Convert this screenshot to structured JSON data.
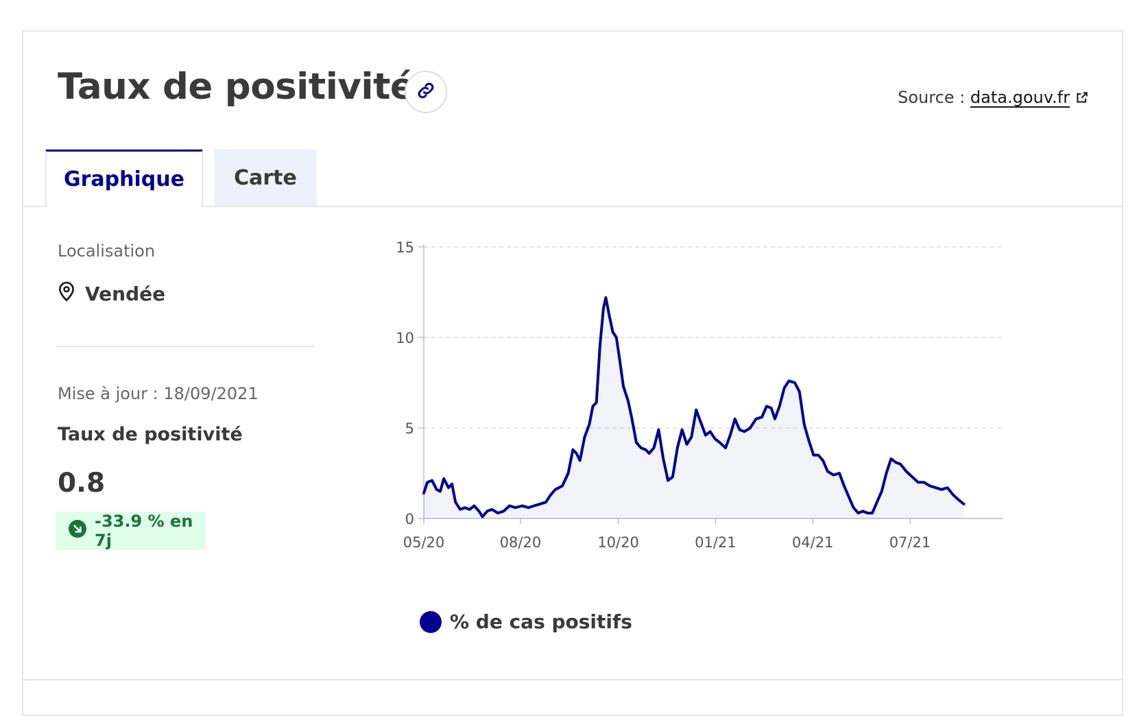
{
  "header": {
    "title": "Taux de positivité",
    "source_label": "Source :",
    "source_link": "data.gouv.fr"
  },
  "tabs": [
    {
      "label": "Graphique",
      "active": true
    },
    {
      "label": "Carte",
      "active": false
    }
  ],
  "sidebar": {
    "location_label": "Localisation",
    "location_value": "Vendée",
    "update_label": "Mise à jour : 18/09/2021",
    "metric_label": "Taux de positivité",
    "metric_value": "0.8",
    "trend_text": "-33.9 % en 7j"
  },
  "colors": {
    "accent": "#000091",
    "trend_bg": "#dffde9",
    "trend_text": "#18753c"
  },
  "chart_data": {
    "type": "line",
    "x_labels": [
      "05/20",
      "08/20",
      "10/20",
      "01/21",
      "04/21",
      "07/21"
    ],
    "y_ticks": [
      0,
      5,
      10,
      15
    ],
    "ylim": [
      0,
      15
    ],
    "x_start": "2020-05-13",
    "x_end": "2021-09-18",
    "series": [
      {
        "name": "% de cas positifs",
        "color": "#000091",
        "points": [
          [
            "2020-05-13",
            1.4
          ],
          [
            "2020-05-16",
            2.0
          ],
          [
            "2020-05-20",
            2.1
          ],
          [
            "2020-05-24",
            1.6
          ],
          [
            "2020-05-27",
            1.5
          ],
          [
            "2020-05-30",
            2.2
          ],
          [
            "2020-06-03",
            1.7
          ],
          [
            "2020-06-06",
            1.9
          ],
          [
            "2020-06-09",
            0.9
          ],
          [
            "2020-06-13",
            0.5
          ],
          [
            "2020-06-17",
            0.6
          ],
          [
            "2020-06-21",
            0.5
          ],
          [
            "2020-06-25",
            0.7
          ],
          [
            "2020-06-29",
            0.4
          ],
          [
            "2020-07-02",
            0.1
          ],
          [
            "2020-07-06",
            0.4
          ],
          [
            "2020-07-10",
            0.5
          ],
          [
            "2020-07-15",
            0.3
          ],
          [
            "2020-07-20",
            0.4
          ],
          [
            "2020-07-25",
            0.7
          ],
          [
            "2020-07-30",
            0.6
          ],
          [
            "2020-08-05",
            0.7
          ],
          [
            "2020-08-10",
            0.6
          ],
          [
            "2020-08-15",
            0.7
          ],
          [
            "2020-08-20",
            0.8
          ],
          [
            "2020-08-25",
            0.9
          ],
          [
            "2020-08-29",
            1.3
          ],
          [
            "2020-09-02",
            1.6
          ],
          [
            "2020-09-08",
            1.8
          ],
          [
            "2020-09-13",
            2.5
          ],
          [
            "2020-09-17",
            3.8
          ],
          [
            "2020-09-20",
            3.6
          ],
          [
            "2020-09-23",
            3.2
          ],
          [
            "2020-09-27",
            4.5
          ],
          [
            "2020-10-01",
            5.2
          ],
          [
            "2020-10-04",
            6.2
          ],
          [
            "2020-10-07",
            6.4
          ],
          [
            "2020-10-10",
            9.5
          ],
          [
            "2020-10-13",
            11.6
          ],
          [
            "2020-10-15",
            12.2
          ],
          [
            "2020-10-18",
            11.2
          ],
          [
            "2020-10-21",
            10.3
          ],
          [
            "2020-10-24",
            10.0
          ],
          [
            "2020-10-27",
            8.7
          ],
          [
            "2020-10-30",
            7.3
          ],
          [
            "2020-11-03",
            6.5
          ],
          [
            "2020-11-06",
            5.6
          ],
          [
            "2020-11-10",
            4.2
          ],
          [
            "2020-11-14",
            3.9
          ],
          [
            "2020-11-18",
            3.8
          ],
          [
            "2020-11-21",
            3.6
          ],
          [
            "2020-11-25",
            3.9
          ],
          [
            "2020-11-29",
            4.9
          ],
          [
            "2020-12-03",
            3.3
          ],
          [
            "2020-12-07",
            2.1
          ],
          [
            "2020-12-11",
            2.3
          ],
          [
            "2020-12-15",
            3.9
          ],
          [
            "2020-12-19",
            4.9
          ],
          [
            "2020-12-23",
            4.1
          ],
          [
            "2020-12-27",
            4.5
          ],
          [
            "2020-12-31",
            6.0
          ],
          [
            "2021-01-04",
            5.3
          ],
          [
            "2021-01-08",
            4.6
          ],
          [
            "2021-01-12",
            4.8
          ],
          [
            "2021-01-16",
            4.4
          ],
          [
            "2021-01-20",
            4.2
          ],
          [
            "2021-01-25",
            3.9
          ],
          [
            "2021-01-29",
            4.6
          ],
          [
            "2021-02-02",
            5.5
          ],
          [
            "2021-02-06",
            4.9
          ],
          [
            "2021-02-10",
            4.8
          ],
          [
            "2021-02-15",
            5.0
          ],
          [
            "2021-02-20",
            5.5
          ],
          [
            "2021-02-25",
            5.6
          ],
          [
            "2021-03-01",
            6.2
          ],
          [
            "2021-03-05",
            6.1
          ],
          [
            "2021-03-08",
            5.5
          ],
          [
            "2021-03-12",
            6.2
          ],
          [
            "2021-03-16",
            7.2
          ],
          [
            "2021-03-20",
            7.6
          ],
          [
            "2021-03-25",
            7.5
          ],
          [
            "2021-03-29",
            7.0
          ],
          [
            "2021-04-02",
            5.2
          ],
          [
            "2021-04-06",
            4.3
          ],
          [
            "2021-04-10",
            3.5
          ],
          [
            "2021-04-14",
            3.5
          ],
          [
            "2021-04-18",
            3.2
          ],
          [
            "2021-04-22",
            2.6
          ],
          [
            "2021-04-27",
            2.4
          ],
          [
            "2021-05-02",
            2.5
          ],
          [
            "2021-05-06",
            1.8
          ],
          [
            "2021-05-10",
            1.2
          ],
          [
            "2021-05-14",
            0.6
          ],
          [
            "2021-05-18",
            0.3
          ],
          [
            "2021-05-22",
            0.4
          ],
          [
            "2021-05-26",
            0.3
          ],
          [
            "2021-05-30",
            0.3
          ],
          [
            "2021-06-03",
            0.9
          ],
          [
            "2021-06-07",
            1.5
          ],
          [
            "2021-06-11",
            2.5
          ],
          [
            "2021-06-15",
            3.3
          ],
          [
            "2021-06-19",
            3.1
          ],
          [
            "2021-06-23",
            3.0
          ],
          [
            "2021-06-28",
            2.6
          ],
          [
            "2021-07-03",
            2.3
          ],
          [
            "2021-07-08",
            2.0
          ],
          [
            "2021-07-13",
            2.0
          ],
          [
            "2021-07-18",
            1.8
          ],
          [
            "2021-07-23",
            1.7
          ],
          [
            "2021-07-28",
            1.6
          ],
          [
            "2021-08-02",
            1.7
          ],
          [
            "2021-08-07",
            1.3
          ],
          [
            "2021-08-12",
            1.0
          ],
          [
            "2021-08-16",
            0.8
          ]
        ]
      }
    ]
  }
}
